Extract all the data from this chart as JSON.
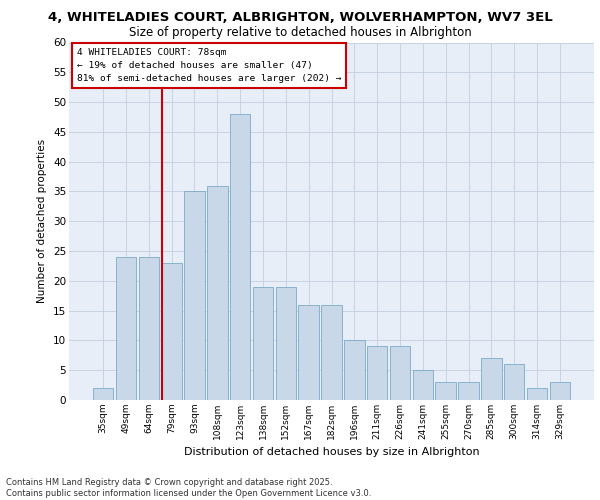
{
  "title_line1": "4, WHITELADIES COURT, ALBRIGHTON, WOLVERHAMPTON, WV7 3EL",
  "title_line2": "Size of property relative to detached houses in Albrighton",
  "xlabel": "Distribution of detached houses by size in Albrighton",
  "ylabel": "Number of detached properties",
  "categories": [
    "35sqm",
    "49sqm",
    "64sqm",
    "79sqm",
    "93sqm",
    "108sqm",
    "123sqm",
    "138sqm",
    "152sqm",
    "167sqm",
    "182sqm",
    "196sqm",
    "211sqm",
    "226sqm",
    "241sqm",
    "255sqm",
    "270sqm",
    "285sqm",
    "300sqm",
    "314sqm",
    "329sqm"
  ],
  "values": [
    2,
    24,
    24,
    23,
    35,
    36,
    48,
    19,
    19,
    16,
    16,
    10,
    9,
    9,
    5,
    3,
    3,
    7,
    6,
    2,
    3
  ],
  "bar_color": "#c8d8e8",
  "bar_edge_color": "#7aaac8",
  "grid_color": "#c8d4e4",
  "bg_color": "#e8eef8",
  "annotation_text_line1": "4 WHITELADIES COURT: 78sqm",
  "annotation_text_line2": "← 19% of detached houses are smaller (47)",
  "annotation_text_line3": "81% of semi-detached houses are larger (202) →",
  "annotation_box_color": "#ffffff",
  "annotation_box_edge_color": "#cc0000",
  "red_line_color": "#cc0000",
  "footer_line1": "Contains HM Land Registry data © Crown copyright and database right 2025.",
  "footer_line2": "Contains public sector information licensed under the Open Government Licence v3.0.",
  "ylim": [
    0,
    60
  ],
  "yticks": [
    0,
    5,
    10,
    15,
    20,
    25,
    30,
    35,
    40,
    45,
    50,
    55,
    60
  ],
  "red_line_x": 2.57
}
